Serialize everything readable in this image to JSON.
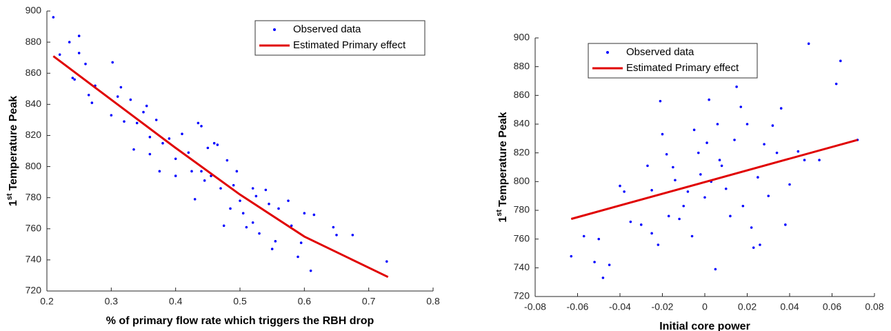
{
  "chart_data": [
    {
      "type": "scatter",
      "ylabel": [
        "1",
        "st",
        "Temperature Peak"
      ],
      "xlabel": "% of primary flow rate which triggers the RBH drop",
      "xlim": [
        0.2,
        0.8
      ],
      "xticks": [
        0.2,
        0.3,
        0.4,
        0.5,
        0.6,
        0.7,
        0.8
      ],
      "ylim": [
        720,
        900
      ],
      "yticks": [
        720,
        740,
        760,
        780,
        800,
        820,
        840,
        860,
        880,
        900
      ],
      "series": [
        {
          "name": "Observed data",
          "type": "scatter",
          "color": "#0000ff",
          "x": [
            0.21,
            0.22,
            0.235,
            0.24,
            0.243,
            0.25,
            0.25,
            0.26,
            0.265,
            0.27,
            0.275,
            0.3,
            0.302,
            0.31,
            0.315,
            0.32,
            0.33,
            0.335,
            0.34,
            0.35,
            0.355,
            0.36,
            0.36,
            0.37,
            0.375,
            0.38,
            0.39,
            0.4,
            0.4,
            0.41,
            0.42,
            0.425,
            0.43,
            0.435,
            0.44,
            0.44,
            0.445,
            0.45,
            0.455,
            0.46,
            0.465,
            0.47,
            0.475,
            0.48,
            0.485,
            0.49,
            0.495,
            0.5,
            0.505,
            0.51,
            0.52,
            0.52,
            0.525,
            0.53,
            0.54,
            0.545,
            0.55,
            0.555,
            0.56,
            0.575,
            0.58,
            0.59,
            0.595,
            0.6,
            0.61,
            0.615,
            0.645,
            0.65,
            0.675,
            0.728
          ],
          "values": [
            896,
            872,
            880,
            857,
            856,
            884,
            873,
            866,
            846,
            841,
            852,
            833,
            867,
            845,
            851,
            829,
            843,
            811,
            828,
            835,
            839,
            819,
            808,
            830,
            797,
            815,
            818,
            794,
            805,
            821,
            809,
            797,
            779,
            828,
            826,
            797,
            791,
            812,
            794,
            815,
            814,
            786,
            762,
            804,
            773,
            788,
            797,
            778,
            770,
            761,
            764,
            786,
            781,
            757,
            785,
            776,
            747,
            752,
            773,
            778,
            762,
            742,
            751,
            770,
            733,
            769,
            761,
            756,
            756,
            739
          ]
        },
        {
          "name": "Estimated Primary effect",
          "type": "line",
          "color": "#e00000",
          "x": [
            0.21,
            0.3,
            0.4,
            0.5,
            0.6,
            0.73
          ],
          "values": [
            871,
            843,
            812,
            782,
            755,
            729
          ]
        }
      ]
    },
    {
      "type": "scatter",
      "ylabel": [
        "1",
        "st",
        "Temperature Peak"
      ],
      "xlabel": "Initial core power",
      "xlim": [
        -0.08,
        0.08
      ],
      "xticks": [
        -0.08,
        -0.06,
        -0.04,
        -0.02,
        0,
        0.02,
        0.04,
        0.06,
        0.08
      ],
      "ylim": [
        720,
        900
      ],
      "yticks": [
        720,
        740,
        760,
        780,
        800,
        820,
        840,
        860,
        880,
        900
      ],
      "series": [
        {
          "name": "Observed data",
          "type": "scatter",
          "color": "#0000ff",
          "x": [
            -0.063,
            -0.057,
            -0.052,
            -0.05,
            -0.048,
            -0.045,
            -0.04,
            -0.038,
            -0.035,
            -0.03,
            -0.027,
            -0.025,
            -0.025,
            -0.022,
            -0.021,
            -0.02,
            -0.018,
            -0.017,
            -0.015,
            -0.014,
            -0.012,
            -0.01,
            -0.008,
            -0.006,
            -0.005,
            -0.003,
            -0.002,
            0,
            0.001,
            0.002,
            0.003,
            0.005,
            0.006,
            0.007,
            0.008,
            0.01,
            0.012,
            0.014,
            0.015,
            0.017,
            0.018,
            0.02,
            0.022,
            0.023,
            0.025,
            0.026,
            0.028,
            0.03,
            0.032,
            0.034,
            0.036,
            0.038,
            0.04,
            0.044,
            0.047,
            0.049,
            0.054,
            0.062,
            0.064,
            0.072
          ],
          "values": [
            748,
            762,
            744,
            760,
            733,
            742,
            797,
            793,
            772,
            770,
            811,
            794,
            764,
            756,
            856,
            833,
            819,
            776,
            810,
            801,
            774,
            783,
            793,
            762,
            836,
            820,
            805,
            789,
            827,
            857,
            800,
            739,
            840,
            815,
            811,
            795,
            776,
            829,
            866,
            852,
            783,
            840,
            768,
            754,
            803,
            756,
            826,
            790,
            839,
            820,
            851,
            770,
            798,
            821,
            815,
            896,
            815,
            868,
            884,
            829
          ]
        },
        {
          "name": "Estimated Primary effect",
          "type": "line",
          "color": "#e00000",
          "x": [
            -0.063,
            0.072
          ],
          "values": [
            774,
            829
          ]
        }
      ]
    }
  ]
}
